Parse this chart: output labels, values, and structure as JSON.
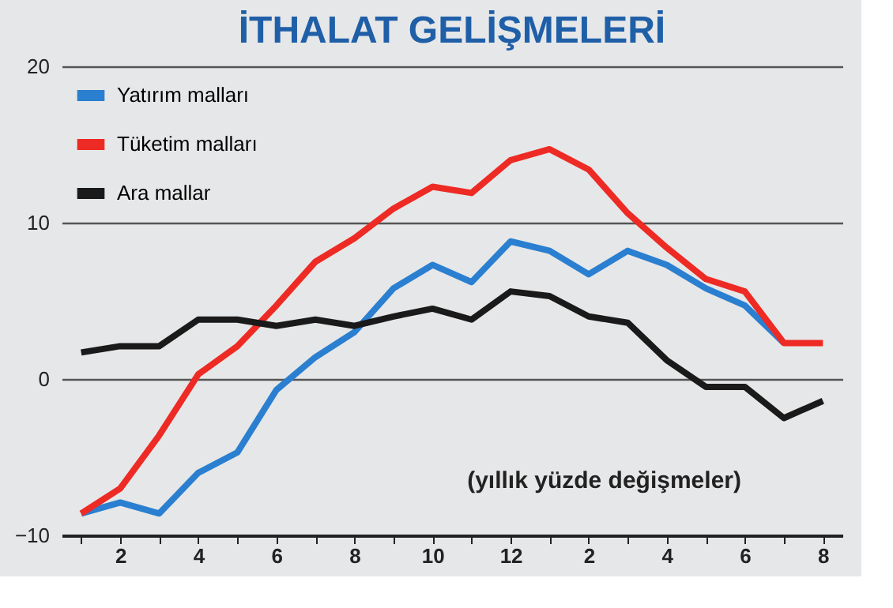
{
  "chart_data": {
    "type": "line",
    "title": "İTHALAT GELİŞMELERİ",
    "categories": [
      null,
      "2",
      null,
      "4",
      null,
      "6",
      null,
      "8",
      null,
      "10",
      null,
      "12",
      null,
      "2",
      null,
      "4",
      null,
      "6",
      null,
      "8"
    ],
    "series": [
      {
        "name": "Yatırım malları",
        "color": "#2a7fd0",
        "values": [
          -8.6,
          -7.9,
          -8.6,
          -6.0,
          -4.7,
          -0.7,
          1.4,
          3.0,
          5.8,
          7.3,
          6.2,
          8.8,
          8.2,
          6.7,
          8.2,
          7.3,
          5.8,
          4.7,
          2.3,
          null
        ]
      },
      {
        "name": "Tüketim malları",
        "color": "#ee2a24",
        "values": [
          -8.6,
          -7.0,
          -3.6,
          0.3,
          2.1,
          4.7,
          7.5,
          9.0,
          10.9,
          12.3,
          11.9,
          14.0,
          14.7,
          13.4,
          10.6,
          8.4,
          6.4,
          5.6,
          2.3,
          2.3
        ]
      },
      {
        "name": "Ara mallar",
        "color": "#1a1a1a",
        "values": [
          1.7,
          2.1,
          2.1,
          3.8,
          3.8,
          3.4,
          3.8,
          3.4,
          4.0,
          4.5,
          3.8,
          5.6,
          5.3,
          4.0,
          3.6,
          1.2,
          -0.5,
          -0.5,
          -2.5,
          -1.4
        ]
      }
    ],
    "ylim": [
      -10,
      20
    ],
    "yticks": [
      -10,
      0,
      10,
      20
    ],
    "grid": "y",
    "legend": "top left",
    "marker": "none",
    "line_style": "solid",
    "annotations": [
      "(yıllık yüzde değişmeler)"
    ]
  }
}
